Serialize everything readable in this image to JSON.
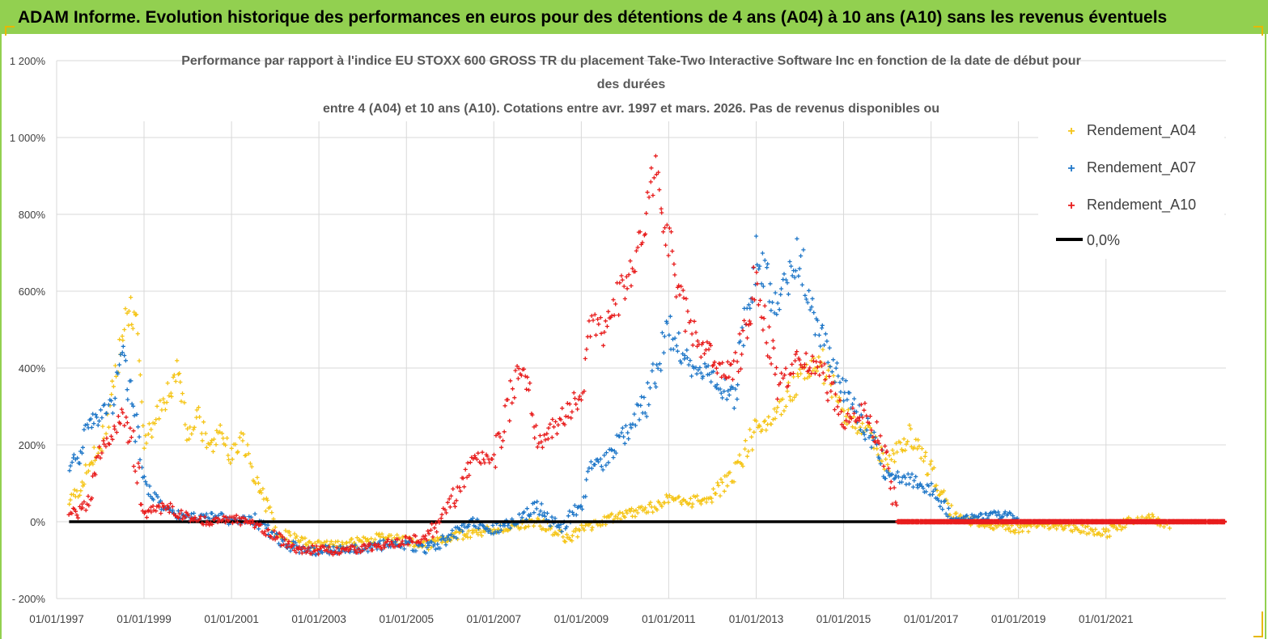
{
  "header": {
    "banner_title": "ADAM Informe. Evolution historique des performances en euros pour des détentions de 4 ans (A04) à 10 ans (A10) sans les revenus éventuels"
  },
  "colors": {
    "banner_bg": "#92d050",
    "A04": "#f5c518",
    "A07": "#1f77c8",
    "A10": "#e81c1c",
    "zero": "#000000",
    "grid": "#d9d9d9"
  },
  "chart_data": {
    "type": "scatter",
    "title_lines": [
      "Performance par rapport à l'indice EU STOXX 600 GROSS TR  du placement Take-Two Interactive Software Inc en fonction de la date de début pour",
      "des durées",
      "entre 4 (A04) et 10 ans (A10). Cotations entre avr. 1997 et mars. 2026. Pas de revenus disponibles ou"
    ],
    "xlabel": "",
    "ylabel": "",
    "y_axis": {
      "min": -200,
      "max": 1200,
      "step": 200,
      "tick_labels": [
        "- 200%",
        "0%",
        "200%",
        "400%",
        "600%",
        "800%",
        "1 000%",
        "1 200%"
      ]
    },
    "x_axis": {
      "min": "1997-01-01",
      "max": "2023-09-30",
      "tick_labels": [
        "01/01/1997",
        "01/01/1999",
        "01/01/2001",
        "01/01/2003",
        "01/01/2005",
        "01/01/2007",
        "01/01/2009",
        "01/01/2011",
        "01/01/2013",
        "01/01/2015",
        "01/01/2017",
        "01/01/2019",
        "01/01/2021"
      ],
      "tick_dates": [
        "1997-01-01",
        "1999-01-01",
        "2001-01-01",
        "2003-01-01",
        "2005-01-01",
        "2007-01-01",
        "2009-01-01",
        "2011-01-01",
        "2013-01-01",
        "2015-01-01",
        "2017-01-01",
        "2019-01-01",
        "2021-01-01"
      ]
    },
    "grid": "vertical at year ticks, horizontal at 200% steps",
    "legend_position": "top-right",
    "legend": [
      "Rendement_A04",
      "Rendement_A07",
      "Rendement_A10",
      "0,0%"
    ],
    "series": [
      {
        "name": "Rendement_A04",
        "color_key": "A04",
        "points": [
          [
            "1997-04-15",
            60
          ],
          [
            "1997-07-01",
            80
          ],
          [
            "1997-10-01",
            150
          ],
          [
            "1998-01-01",
            200
          ],
          [
            "1998-04-01",
            300
          ],
          [
            "1998-07-01",
            480
          ],
          [
            "1998-09-01",
            560
          ],
          [
            "1998-11-01",
            500
          ],
          [
            "1999-01-01",
            200
          ],
          [
            "1999-04-01",
            260
          ],
          [
            "1999-07-01",
            320
          ],
          [
            "1999-10-01",
            380
          ],
          [
            "2000-01-01",
            220
          ],
          [
            "2000-04-01",
            280
          ],
          [
            "2000-07-01",
            180
          ],
          [
            "2000-10-01",
            230
          ],
          [
            "2001-01-01",
            170
          ],
          [
            "2001-04-01",
            220
          ],
          [
            "2001-07-01",
            120
          ],
          [
            "2001-10-01",
            60
          ],
          [
            "2002-01-01",
            -20
          ],
          [
            "2002-07-01",
            -50
          ],
          [
            "2003-01-01",
            -60
          ],
          [
            "2003-07-01",
            -60
          ],
          [
            "2004-01-01",
            -50
          ],
          [
            "2004-07-01",
            -40
          ],
          [
            "2005-01-01",
            -50
          ],
          [
            "2005-07-01",
            -60
          ],
          [
            "2006-01-01",
            -40
          ],
          [
            "2006-07-01",
            -30
          ],
          [
            "2007-01-01",
            -20
          ],
          [
            "2007-07-01",
            -10
          ],
          [
            "2008-01-01",
            0
          ],
          [
            "2008-07-01",
            -30
          ],
          [
            "2008-10-01",
            -50
          ],
          [
            "2009-01-01",
            -20
          ],
          [
            "2009-07-01",
            0
          ],
          [
            "2010-01-01",
            20
          ],
          [
            "2010-07-01",
            30
          ],
          [
            "2011-01-01",
            60
          ],
          [
            "2011-07-01",
            50
          ],
          [
            "2012-01-01",
            70
          ],
          [
            "2012-07-01",
            120
          ],
          [
            "2013-01-01",
            240
          ],
          [
            "2013-07-01",
            280
          ],
          [
            "2014-01-01",
            380
          ],
          [
            "2014-07-01",
            420
          ],
          [
            "2015-01-01",
            280
          ],
          [
            "2015-07-01",
            240
          ],
          [
            "2016-01-01",
            150
          ],
          [
            "2016-07-01",
            220
          ],
          [
            "2017-01-01",
            130
          ],
          [
            "2017-07-01",
            20
          ],
          [
            "2018-01-01",
            0
          ],
          [
            "2018-07-01",
            -10
          ],
          [
            "2019-01-01",
            -20
          ],
          [
            "2019-07-01",
            -10
          ],
          [
            "2020-01-01",
            -10
          ],
          [
            "2020-07-01",
            -20
          ],
          [
            "2021-01-01",
            -30
          ],
          [
            "2021-07-01",
            0
          ],
          [
            "2022-01-01",
            10
          ],
          [
            "2022-07-01",
            -10
          ]
        ]
      },
      {
        "name": "Rendement_A07",
        "color_key": "A07",
        "points": [
          [
            "1997-04-15",
            150
          ],
          [
            "1997-07-01",
            170
          ],
          [
            "1997-10-01",
            250
          ],
          [
            "1998-01-01",
            280
          ],
          [
            "1998-04-01",
            300
          ],
          [
            "1998-07-01",
            430
          ],
          [
            "1998-10-01",
            300
          ],
          [
            "1999-01-01",
            100
          ],
          [
            "1999-04-01",
            60
          ],
          [
            "1999-07-01",
            30
          ],
          [
            "1999-10-01",
            20
          ],
          [
            "2000-01-01",
            10
          ],
          [
            "2000-07-01",
            20
          ],
          [
            "2001-01-01",
            0
          ],
          [
            "2001-07-01",
            10
          ],
          [
            "2002-01-01",
            -40
          ],
          [
            "2002-07-01",
            -70
          ],
          [
            "2003-01-01",
            -75
          ],
          [
            "2003-07-01",
            -70
          ],
          [
            "2004-01-01",
            -70
          ],
          [
            "2004-07-01",
            -60
          ],
          [
            "2005-01-01",
            -60
          ],
          [
            "2005-07-01",
            -70
          ],
          [
            "2006-01-01",
            -40
          ],
          [
            "2006-07-01",
            0
          ],
          [
            "2007-01-01",
            -20
          ],
          [
            "2007-07-01",
            0
          ],
          [
            "2008-01-01",
            40
          ],
          [
            "2008-07-01",
            -20
          ],
          [
            "2009-01-01",
            40
          ],
          [
            "2009-04-01",
            150
          ],
          [
            "2009-07-01",
            150
          ],
          [
            "2010-01-01",
            230
          ],
          [
            "2010-07-01",
            320
          ],
          [
            "2011-01-01",
            500
          ],
          [
            "2011-07-01",
            400
          ],
          [
            "2012-01-01",
            380
          ],
          [
            "2012-07-01",
            320
          ],
          [
            "2013-01-01",
            700
          ],
          [
            "2013-07-01",
            560
          ],
          [
            "2014-01-01",
            700
          ],
          [
            "2014-07-01",
            480
          ],
          [
            "2015-01-01",
            350
          ],
          [
            "2015-07-01",
            250
          ],
          [
            "2016-01-01",
            120
          ],
          [
            "2016-07-01",
            110
          ],
          [
            "2017-01-01",
            80
          ],
          [
            "2017-07-01",
            10
          ],
          [
            "2018-01-01",
            10
          ],
          [
            "2018-07-01",
            20
          ],
          [
            "2019-01-01",
            10
          ]
        ]
      },
      {
        "name": "Rendement_A10",
        "color_key": "A10",
        "points": [
          [
            "1997-04-15",
            30
          ],
          [
            "1997-07-01",
            20
          ],
          [
            "1997-10-01",
            60
          ],
          [
            "1998-01-01",
            180
          ],
          [
            "1998-04-01",
            220
          ],
          [
            "1998-07-01",
            280
          ],
          [
            "1998-10-01",
            200
          ],
          [
            "1999-01-01",
            20
          ],
          [
            "1999-07-01",
            40
          ],
          [
            "2000-01-01",
            10
          ],
          [
            "2000-07-01",
            0
          ],
          [
            "2001-01-01",
            10
          ],
          [
            "2001-07-01",
            -10
          ],
          [
            "2002-01-01",
            -40
          ],
          [
            "2002-07-01",
            -70
          ],
          [
            "2003-01-01",
            -75
          ],
          [
            "2003-07-01",
            -75
          ],
          [
            "2004-01-01",
            -70
          ],
          [
            "2004-07-01",
            -60
          ],
          [
            "2005-01-01",
            -50
          ],
          [
            "2005-07-01",
            -40
          ],
          [
            "2006-01-01",
            40
          ],
          [
            "2006-07-01",
            170
          ],
          [
            "2007-01-01",
            160
          ],
          [
            "2007-07-01",
            380
          ],
          [
            "2007-10-01",
            400
          ],
          [
            "2008-01-01",
            200
          ],
          [
            "2008-07-01",
            260
          ],
          [
            "2009-01-01",
            330
          ],
          [
            "2009-04-01",
            520
          ],
          [
            "2009-07-01",
            500
          ],
          [
            "2010-01-01",
            620
          ],
          [
            "2010-07-01",
            760
          ],
          [
            "2010-09-01",
            950
          ],
          [
            "2011-01-01",
            720
          ],
          [
            "2011-07-01",
            500
          ],
          [
            "2012-01-01",
            420
          ],
          [
            "2012-07-01",
            380
          ],
          [
            "2013-01-01",
            630
          ],
          [
            "2013-07-01",
            350
          ],
          [
            "2014-01-01",
            420
          ],
          [
            "2014-07-01",
            400
          ],
          [
            "2015-01-01",
            260
          ],
          [
            "2015-07-01",
            300
          ],
          [
            "2016-01-01",
            150
          ],
          [
            "2016-04-01",
            0
          ],
          [
            "2023-09-30",
            0
          ]
        ]
      },
      {
        "name": "0,0%",
        "color_key": "zero",
        "type": "line",
        "points": [
          [
            "1997-04-15",
            0
          ],
          [
            "2016-04-01",
            0
          ]
        ]
      }
    ]
  }
}
